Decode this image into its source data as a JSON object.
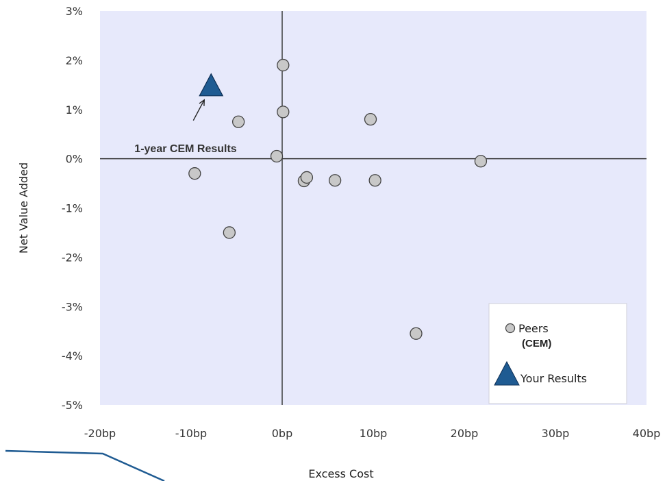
{
  "chart_data": {
    "type": "scatter",
    "title": "",
    "xlabel": "Excess Cost",
    "ylabel": "Net Value Added",
    "xlim": [
      -20,
      40
    ],
    "ylim": [
      -5,
      3
    ],
    "x_ticks": [
      -20,
      -10,
      0,
      10,
      20,
      30,
      40
    ],
    "x_tick_labels": [
      "-20bp",
      "-10bp",
      "0bp",
      "10bp",
      "20bp",
      "30bp",
      "40bp"
    ],
    "y_ticks": [
      3,
      2,
      1,
      0,
      -1,
      -2,
      -3,
      -4,
      -5
    ],
    "y_tick_labels": [
      "3%",
      "2%",
      "1%",
      "0%",
      "-1%",
      "-2%",
      "-3%",
      "-4%",
      "-5%"
    ],
    "grid": false,
    "legend_position": "bottom-right",
    "series": [
      {
        "name": "Peers",
        "name_sub": "(CEM)",
        "marker": "circle",
        "color": "#c8c8c8",
        "points": [
          {
            "x": 0.1,
            "y": 1.9
          },
          {
            "x": 0.1,
            "y": 0.95
          },
          {
            "x": -4.8,
            "y": 0.75
          },
          {
            "x": 9.7,
            "y": 0.8
          },
          {
            "x": -0.6,
            "y": 0.05
          },
          {
            "x": -9.6,
            "y": -0.3
          },
          {
            "x": 2.4,
            "y": -0.45
          },
          {
            "x": 2.7,
            "y": -0.38
          },
          {
            "x": 5.8,
            "y": -0.44
          },
          {
            "x": 10.2,
            "y": -0.44
          },
          {
            "x": 21.8,
            "y": -0.05
          },
          {
            "x": -5.8,
            "y": -1.5
          },
          {
            "x": 14.7,
            "y": -3.55
          }
        ]
      },
      {
        "name": "Your Results",
        "marker": "triangle",
        "color": "#1f5b92",
        "points": [
          {
            "x": -7.8,
            "y": 1.5
          }
        ]
      }
    ],
    "annotations": [
      {
        "text": "1-year CEM Results",
        "x": -7.8,
        "y": 1.5
      }
    ]
  }
}
